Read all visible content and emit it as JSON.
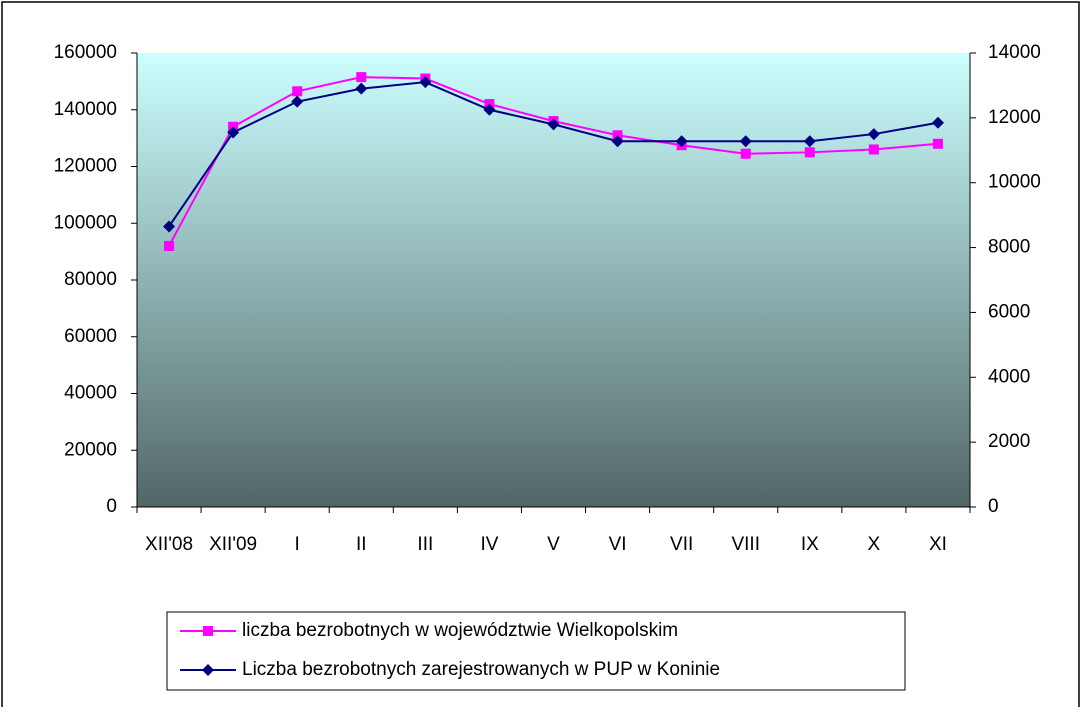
{
  "chart_data": {
    "type": "line",
    "categories": [
      "XII'08",
      "XII'09",
      "I",
      "II",
      "III",
      "IV",
      "V",
      "VI",
      "VII",
      "VIII",
      "IX",
      "X",
      "XI"
    ],
    "series": [
      {
        "name": "liczba bezrobotnych w województwie Wielkopolskim",
        "color": "#ff00ff",
        "marker": "square",
        "values": [
          92000,
          134000,
          146500,
          151500,
          151000,
          142000,
          136000,
          131000,
          127500,
          124500,
          125000,
          126000,
          128000
        ]
      },
      {
        "name": "Liczba bezrobotnych zarejestrowanych w PUP w Koninie",
        "color": "#000080",
        "marker": "diamond",
        "axis": "y2",
        "values": [
          8650,
          11550,
          12500,
          12900,
          13100,
          12250,
          11800,
          11280,
          11280,
          11280,
          11280,
          11500,
          11850
        ]
      }
    ],
    "ylim": [
      0,
      160000
    ],
    "yticks": [
      0,
      20000,
      40000,
      60000,
      80000,
      100000,
      120000,
      140000,
      160000
    ],
    "y2lim": [
      0,
      14000
    ],
    "y2ticks": [
      0,
      2000,
      4000,
      6000,
      8000,
      10000,
      12000,
      14000
    ],
    "legend": "bottom"
  }
}
